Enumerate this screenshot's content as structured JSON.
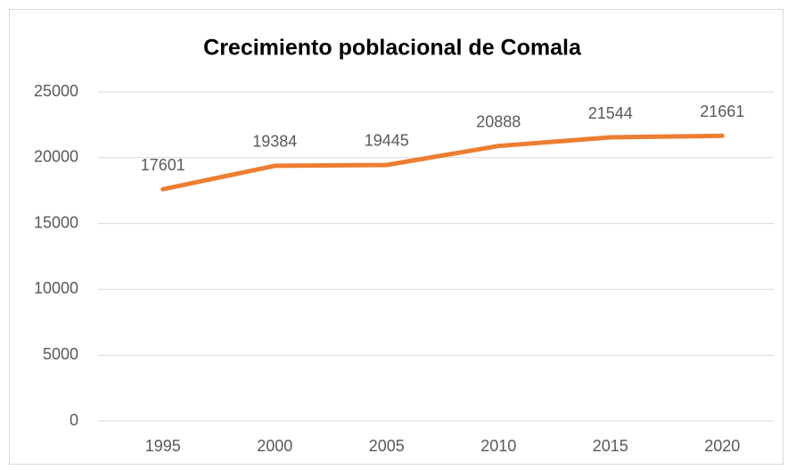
{
  "chart_data": {
    "type": "line",
    "title": "Crecimiento poblacional de Comala",
    "categories": [
      "1995",
      "2000",
      "2005",
      "2010",
      "2015",
      "2020"
    ],
    "values": [
      17601,
      19384,
      19445,
      20888,
      21544,
      21661
    ],
    "color": "#ed7d31",
    "ylim": [
      0,
      25000
    ],
    "yticks": [
      0,
      5000,
      10000,
      15000,
      20000,
      25000
    ],
    "grid": true,
    "data_labels": true
  }
}
